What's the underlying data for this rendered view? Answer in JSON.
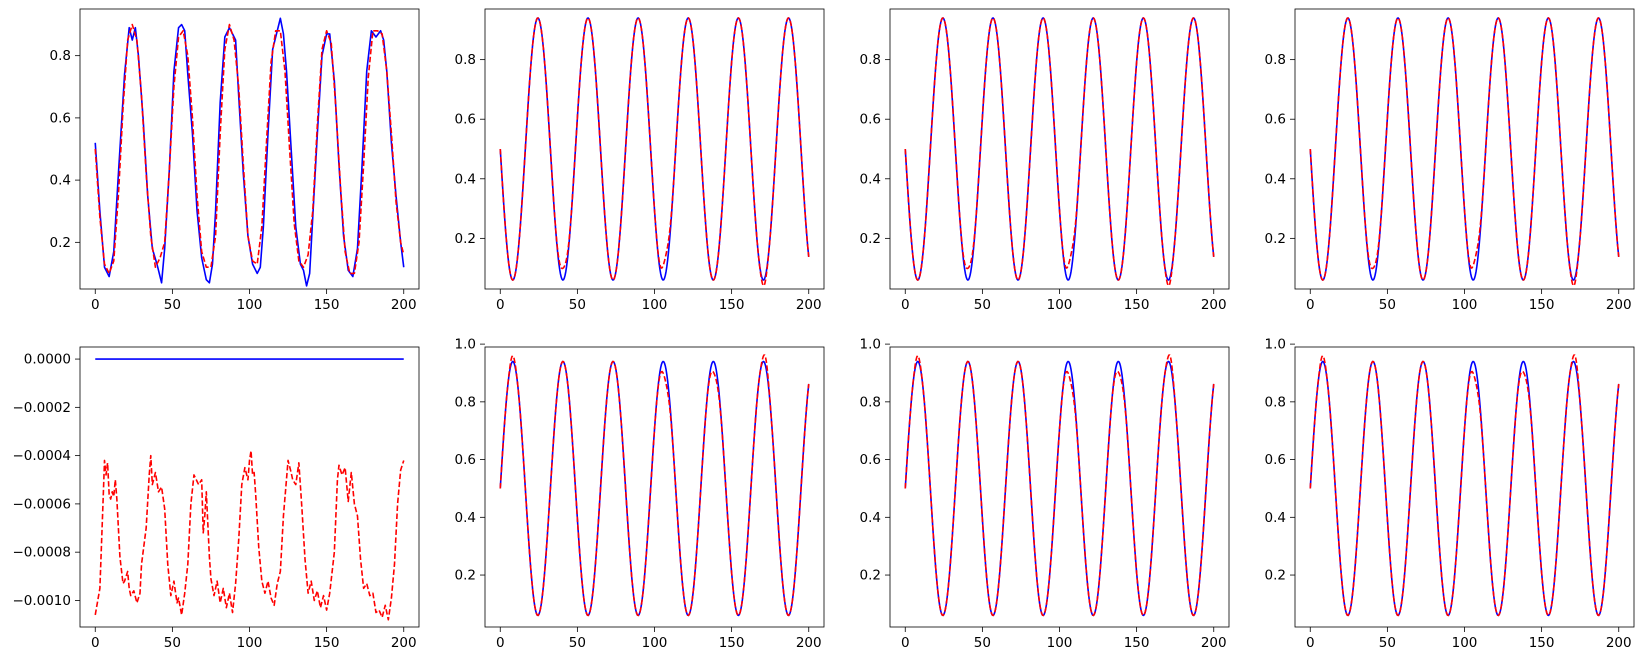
{
  "figure": {
    "background": "#ffffff"
  },
  "colors": {
    "truth": "#0000ff",
    "prediction": "#ff0000",
    "axes": "#000000"
  },
  "chart_data": [
    {
      "type": "line",
      "xlim": [
        0,
        200
      ],
      "ylim": [
        0.05,
        0.95
      ],
      "xticks": [
        "0",
        "50",
        "100",
        "150",
        "200"
      ],
      "yticks": [
        0.2,
        0.4,
        0.6,
        0.8
      ],
      "ytick_labels": [
        "0.2",
        "0.4",
        "0.6",
        "0.8"
      ],
      "series": [
        {
          "style": "solid",
          "color": "#0000ff",
          "x": [
            0,
            3,
            6,
            9,
            12,
            15,
            19,
            22,
            24,
            26,
            28,
            31,
            34,
            37,
            40,
            41,
            43,
            45,
            48,
            51,
            54,
            56,
            58,
            60,
            63,
            66,
            69,
            72,
            74,
            76,
            78,
            81,
            84,
            87,
            89,
            91,
            93,
            96,
            99,
            102,
            105,
            107,
            109,
            112,
            115,
            118,
            120,
            122,
            124,
            127,
            130,
            133,
            135,
            137,
            139,
            141,
            144,
            147,
            150,
            152,
            155,
            158,
            161,
            164,
            167,
            170,
            173,
            176,
            179,
            182,
            185,
            187,
            189,
            192,
            195,
            198,
            200
          ],
          "y": [
            0.52,
            0.3,
            0.12,
            0.09,
            0.17,
            0.42,
            0.74,
            0.89,
            0.85,
            0.89,
            0.8,
            0.6,
            0.35,
            0.18,
            0.13,
            0.11,
            0.07,
            0.18,
            0.43,
            0.75,
            0.89,
            0.9,
            0.88,
            0.74,
            0.55,
            0.3,
            0.15,
            0.08,
            0.07,
            0.13,
            0.3,
            0.65,
            0.86,
            0.89,
            0.87,
            0.85,
            0.67,
            0.42,
            0.22,
            0.13,
            0.1,
            0.12,
            0.25,
            0.55,
            0.82,
            0.88,
            0.92,
            0.87,
            0.75,
            0.5,
            0.25,
            0.13,
            0.11,
            0.06,
            0.1,
            0.28,
            0.55,
            0.8,
            0.87,
            0.87,
            0.72,
            0.45,
            0.22,
            0.11,
            0.09,
            0.18,
            0.45,
            0.75,
            0.88,
            0.86,
            0.88,
            0.85,
            0.75,
            0.52,
            0.35,
            0.2,
            0.12
          ]
        },
        {
          "style": "dashed",
          "color": "#ff0000",
          "x": [
            0,
            3,
            6,
            9,
            12,
            15,
            18,
            21,
            24,
            27,
            30,
            33,
            36,
            39,
            42,
            45,
            48,
            51,
            54,
            57,
            60,
            63,
            66,
            69,
            72,
            75,
            78,
            81,
            84,
            87,
            90,
            93,
            96,
            99,
            102,
            105,
            108,
            111,
            114,
            117,
            120,
            123,
            126,
            129,
            132,
            135,
            138,
            141,
            144,
            147,
            150,
            153,
            156,
            159,
            162,
            165,
            168,
            171,
            174,
            177,
            180,
            183,
            186,
            189,
            192,
            195,
            198,
            200
          ],
          "y": [
            0.5,
            0.28,
            0.13,
            0.1,
            0.14,
            0.35,
            0.63,
            0.85,
            0.9,
            0.85,
            0.67,
            0.42,
            0.22,
            0.12,
            0.15,
            0.2,
            0.43,
            0.7,
            0.86,
            0.88,
            0.8,
            0.6,
            0.35,
            0.17,
            0.12,
            0.12,
            0.22,
            0.55,
            0.82,
            0.9,
            0.85,
            0.7,
            0.45,
            0.22,
            0.14,
            0.13,
            0.25,
            0.52,
            0.78,
            0.88,
            0.88,
            0.75,
            0.5,
            0.26,
            0.14,
            0.12,
            0.16,
            0.3,
            0.58,
            0.82,
            0.88,
            0.84,
            0.63,
            0.38,
            0.17,
            0.1,
            0.1,
            0.2,
            0.45,
            0.73,
            0.88,
            0.88,
            0.87,
            0.75,
            0.55,
            0.33,
            0.2,
            0.16
          ]
        }
      ]
    },
    {
      "type": "line",
      "xlim": [
        0,
        200
      ],
      "ylim": [
        0.03,
        0.97
      ],
      "xticks": [
        "0",
        "50",
        "100",
        "150",
        "200"
      ],
      "yticks": [
        0.2,
        0.4,
        0.6,
        0.8
      ],
      "ytick_labels": [
        "0.2",
        "0.4",
        "0.6",
        "0.8"
      ],
      "series": [
        {
          "style": "solid",
          "color": "#0000ff",
          "wave": {
            "center": 0.5,
            "amp": 0.44,
            "period": 32.5,
            "phase": 0,
            "sign": -1
          }
        },
        {
          "style": "dashed",
          "color": "#ff0000",
          "wave": {
            "center": 0.5,
            "amp": 0.44,
            "period": 32.5,
            "phase": 0,
            "sign": -1
          },
          "bumps": [
            {
              "x": 41,
              "dy": 0.04,
              "w": 3
            },
            {
              "x": 107,
              "dy": 0.06,
              "w": 3
            },
            {
              "x": 171,
              "dy": -0.02,
              "w": 2
            }
          ]
        }
      ]
    },
    {
      "type": "line",
      "xlim": [
        0,
        200
      ],
      "ylim": [
        0.03,
        0.97
      ],
      "xticks": [
        "0",
        "50",
        "100",
        "150",
        "200"
      ],
      "yticks": [
        0.2,
        0.4,
        0.6,
        0.8
      ],
      "ytick_labels": [
        "0.2",
        "0.4",
        "0.6",
        "0.8"
      ],
      "series": [
        {
          "style": "solid",
          "color": "#0000ff",
          "wave": {
            "center": 0.5,
            "amp": 0.44,
            "period": 32.5,
            "phase": 0,
            "sign": -1
          }
        },
        {
          "style": "dashed",
          "color": "#ff0000",
          "wave": {
            "center": 0.5,
            "amp": 0.44,
            "period": 32.5,
            "phase": 0,
            "sign": -1
          },
          "bumps": [
            {
              "x": 41,
              "dy": 0.04,
              "w": 3
            },
            {
              "x": 107,
              "dy": 0.06,
              "w": 3
            },
            {
              "x": 171,
              "dy": -0.02,
              "w": 2
            }
          ]
        }
      ]
    },
    {
      "type": "line",
      "xlim": [
        0,
        200
      ],
      "ylim": [
        0.03,
        0.97
      ],
      "xticks": [
        "0",
        "50",
        "100",
        "150",
        "200"
      ],
      "yticks": [
        0.2,
        0.4,
        0.6,
        0.8
      ],
      "ytick_labels": [
        "0.2",
        "0.4",
        "0.6",
        "0.8"
      ],
      "series": [
        {
          "style": "solid",
          "color": "#0000ff",
          "wave": {
            "center": 0.5,
            "amp": 0.44,
            "period": 32.5,
            "phase": 0,
            "sign": -1
          }
        },
        {
          "style": "dashed",
          "color": "#ff0000",
          "wave": {
            "center": 0.5,
            "amp": 0.44,
            "period": 32.5,
            "phase": 0,
            "sign": -1
          },
          "bumps": [
            {
              "x": 41,
              "dy": 0.04,
              "w": 3
            },
            {
              "x": 107,
              "dy": 0.06,
              "w": 3
            },
            {
              "x": 171,
              "dy": -0.02,
              "w": 2
            }
          ]
        }
      ]
    },
    {
      "type": "line",
      "xlim": [
        0,
        200
      ],
      "ylim": [
        -0.00111,
        5e-05
      ],
      "xticks": [
        "0",
        "50",
        "100",
        "150",
        "200"
      ],
      "yticks": [
        0,
        -0.0002,
        -0.0004,
        -0.0006,
        -0.0008,
        -0.001
      ],
      "ytick_labels": [
        "0.0000",
        "−0.0002",
        "−0.0004",
        "−0.0006",
        "−0.0008",
        "−0.0010"
      ],
      "series": [
        {
          "style": "solid",
          "color": "#0000ff",
          "x": [
            0,
            200
          ],
          "y": [
            0,
            0
          ]
        },
        {
          "style": "dashed",
          "color": "#ff0000",
          "x": [
            0,
            3,
            5,
            6,
            7,
            8,
            9,
            10,
            11,
            12,
            13,
            14,
            16,
            18,
            19,
            21,
            22,
            23,
            25,
            27,
            29,
            30,
            33,
            35,
            36,
            37,
            39,
            41,
            43,
            45,
            47,
            49,
            51,
            53,
            54,
            56,
            58,
            60,
            62,
            64,
            67,
            69,
            70,
            71,
            72,
            74,
            75,
            77,
            79,
            81,
            83,
            85,
            87,
            89,
            91,
            93,
            95,
            97,
            99,
            100,
            101,
            102,
            103,
            104,
            106,
            108,
            110,
            112,
            114,
            116,
            118,
            120,
            122,
            125,
            127,
            128,
            130,
            132,
            134,
            136,
            138,
            140,
            142,
            144,
            146,
            148,
            150,
            152,
            155,
            157,
            158,
            160,
            162,
            164,
            166,
            168,
            170,
            172,
            174,
            176,
            178,
            180,
            182,
            184,
            186,
            188,
            190,
            192,
            194,
            196,
            198,
            200
          ],
          "y": [
            -0.00106,
            -0.00095,
            -0.0006,
            -0.00042,
            -0.00048,
            -0.00043,
            -0.00056,
            -0.00058,
            -0.00055,
            -0.00057,
            -0.0005,
            -0.00058,
            -0.00082,
            -0.00093,
            -0.00092,
            -0.00088,
            -0.00095,
            -0.00098,
            -0.00096,
            -0.00101,
            -0.00097,
            -0.00085,
            -0.0007,
            -0.00048,
            -0.0004,
            -0.00052,
            -0.00047,
            -0.00055,
            -0.00053,
            -0.00062,
            -0.00085,
            -0.00098,
            -0.00092,
            -0.00101,
            -0.00099,
            -0.00106,
            -0.00097,
            -0.00085,
            -0.0006,
            -0.00048,
            -0.00052,
            -0.0005,
            -0.00072,
            -0.00065,
            -0.00055,
            -0.00082,
            -0.00091,
            -0.00098,
            -0.00092,
            -0.00101,
            -0.00095,
            -0.00103,
            -0.00097,
            -0.00105,
            -0.00093,
            -0.00075,
            -0.00052,
            -0.00045,
            -0.0005,
            -0.00042,
            -0.00038,
            -0.00048,
            -0.00047,
            -0.00056,
            -0.00078,
            -0.00092,
            -0.00097,
            -0.00092,
            -0.00099,
            -0.00102,
            -0.00093,
            -0.00088,
            -0.00065,
            -0.00042,
            -0.00047,
            -0.0005,
            -0.00052,
            -0.00043,
            -0.00062,
            -0.00083,
            -0.00097,
            -0.00092,
            -0.001,
            -0.00096,
            -0.00103,
            -0.00098,
            -0.00104,
            -0.00097,
            -0.0008,
            -0.0005,
            -0.00044,
            -0.00048,
            -0.00045,
            -0.00059,
            -0.00047,
            -0.0006,
            -0.00065,
            -0.00083,
            -0.00095,
            -0.00093,
            -0.00098,
            -0.00097,
            -0.00105,
            -0.00104,
            -0.00107,
            -0.00102,
            -0.00108,
            -0.00099,
            -0.00085,
            -0.0006,
            -0.00046,
            -0.00042
          ]
        }
      ]
    },
    {
      "type": "line",
      "xlim": [
        0,
        200
      ],
      "ylim": [
        0.02,
        0.99
      ],
      "xticks": [
        "0",
        "50",
        "100",
        "150",
        "200"
      ],
      "yticks": [
        0.2,
        0.4,
        0.6,
        0.8,
        1.0
      ],
      "ytick_labels": [
        "0.2",
        "0.4",
        "0.6",
        "0.8",
        "1.0"
      ],
      "series": [
        {
          "style": "solid",
          "color": "#0000ff",
          "wave": {
            "center": 0.5,
            "amp": 0.44,
            "period": 32.5,
            "phase": 0,
            "sign": 1
          }
        },
        {
          "style": "dashed",
          "color": "#ff0000",
          "wave": {
            "center": 0.5,
            "amp": 0.44,
            "period": 32.5,
            "phase": 0,
            "sign": 1
          },
          "bumps": [
            {
              "x": 8,
              "dy": 0.02,
              "w": 2
            },
            {
              "x": 107,
              "dy": -0.05,
              "w": 3
            },
            {
              "x": 139,
              "dy": -0.04,
              "w": 3
            },
            {
              "x": 172,
              "dy": 0.03,
              "w": 2
            }
          ]
        }
      ]
    },
    {
      "type": "line",
      "xlim": [
        0,
        200
      ],
      "ylim": [
        0.02,
        0.99
      ],
      "xticks": [
        "0",
        "50",
        "100",
        "150",
        "200"
      ],
      "yticks": [
        0.2,
        0.4,
        0.6,
        0.8,
        1.0
      ],
      "ytick_labels": [
        "0.2",
        "0.4",
        "0.6",
        "0.8",
        "1.0"
      ],
      "series": [
        {
          "style": "solid",
          "color": "#0000ff",
          "wave": {
            "center": 0.5,
            "amp": 0.44,
            "period": 32.5,
            "phase": 0,
            "sign": 1
          }
        },
        {
          "style": "dashed",
          "color": "#ff0000",
          "wave": {
            "center": 0.5,
            "amp": 0.44,
            "period": 32.5,
            "phase": 0,
            "sign": 1
          },
          "bumps": [
            {
              "x": 8,
              "dy": 0.02,
              "w": 2
            },
            {
              "x": 107,
              "dy": -0.05,
              "w": 3
            },
            {
              "x": 139,
              "dy": -0.04,
              "w": 3
            },
            {
              "x": 172,
              "dy": 0.03,
              "w": 2
            }
          ]
        }
      ]
    },
    {
      "type": "line",
      "xlim": [
        0,
        200
      ],
      "ylim": [
        0.02,
        0.99
      ],
      "xticks": [
        "0",
        "50",
        "100",
        "150",
        "200"
      ],
      "yticks": [
        0.2,
        0.4,
        0.6,
        0.8,
        1.0
      ],
      "ytick_labels": [
        "0.2",
        "0.4",
        "0.6",
        "0.8",
        "1.0"
      ],
      "series": [
        {
          "style": "solid",
          "color": "#0000ff",
          "wave": {
            "center": 0.5,
            "amp": 0.44,
            "period": 32.5,
            "phase": 0,
            "sign": 1
          }
        },
        {
          "style": "dashed",
          "color": "#ff0000",
          "wave": {
            "center": 0.5,
            "amp": 0.44,
            "period": 32.5,
            "phase": 0,
            "sign": 1
          },
          "bumps": [
            {
              "x": 8,
              "dy": 0.02,
              "w": 2
            },
            {
              "x": 107,
              "dy": -0.05,
              "w": 3
            },
            {
              "x": 139,
              "dy": -0.04,
              "w": 3
            },
            {
              "x": 172,
              "dy": 0.03,
              "w": 2
            }
          ]
        }
      ]
    }
  ]
}
